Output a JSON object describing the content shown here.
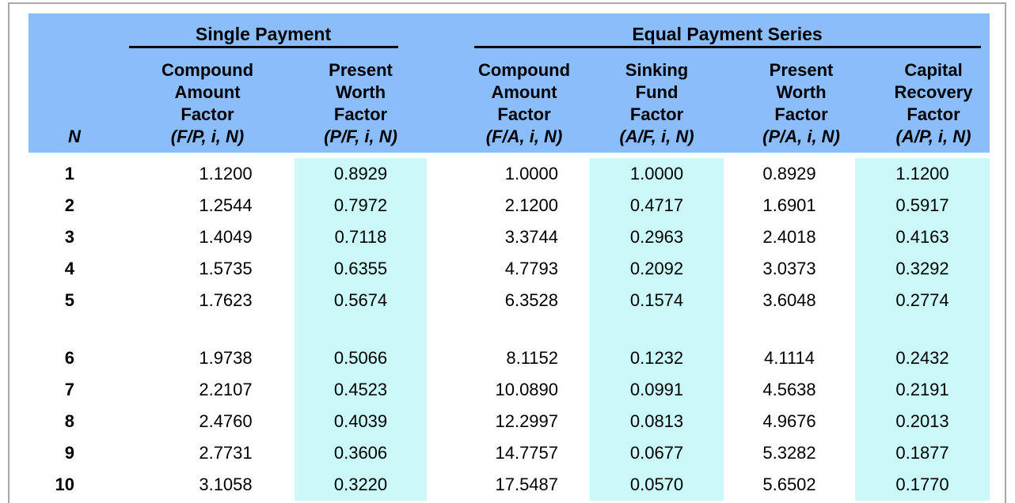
{
  "chart_data": {
    "type": "table",
    "col_groups": [
      {
        "label": "Single Payment",
        "span_columns": [
          "fp",
          "pf"
        ]
      },
      {
        "label": "Equal Payment Series",
        "span_columns": [
          "fa",
          "af",
          "pa",
          "ap"
        ]
      }
    ],
    "columns": [
      {
        "key": "n",
        "label": "",
        "sub": "N",
        "highlight": false
      },
      {
        "key": "fp",
        "label": "Compound\nAmount\nFactor",
        "sub": "(F/P, i, N)",
        "highlight": false
      },
      {
        "key": "pf",
        "label": "Present\nWorth\nFactor",
        "sub": "(P/F, i, N)",
        "highlight": true
      },
      {
        "key": "fa",
        "label": "Compound\nAmount\nFactor",
        "sub": "(F/A, i, N)",
        "highlight": false
      },
      {
        "key": "af",
        "label": "Sinking\nFund\nFactor",
        "sub": "(A/F, i, N)",
        "highlight": true
      },
      {
        "key": "pa",
        "label": "Present\nWorth\nFactor",
        "sub": "(P/A, i, N)",
        "highlight": false
      },
      {
        "key": "ap",
        "label": "Capital\nRecovery\nFactor",
        "sub": "(A/P, i, N)",
        "highlight": true
      }
    ],
    "rows": [
      {
        "values": {
          "n": "1",
          "fp": "1.1200",
          "pf": "0.8929",
          "fa": "1.0000",
          "af": "1.0000",
          "pa": "0.8929",
          "ap": "1.1200"
        }
      },
      {
        "values": {
          "n": "2",
          "fp": "1.2544",
          "pf": "0.7972",
          "fa": "2.1200",
          "af": "0.4717",
          "pa": "1.6901",
          "ap": "0.5917"
        }
      },
      {
        "values": {
          "n": "3",
          "fp": "1.4049",
          "pf": "0.7118",
          "fa": "3.3744",
          "af": "0.2963",
          "pa": "2.4018",
          "ap": "0.4163"
        }
      },
      {
        "values": {
          "n": "4",
          "fp": "1.5735",
          "pf": "0.6355",
          "fa": "4.7793",
          "af": "0.2092",
          "pa": "3.0373",
          "ap": "0.3292"
        }
      },
      {
        "values": {
          "n": "5",
          "fp": "1.7623",
          "pf": "0.5674",
          "fa": "6.3528",
          "af": "0.1574",
          "pa": "3.6048",
          "ap": "0.2774"
        }
      },
      {
        "spacer": true
      },
      {
        "values": {
          "n": "6",
          "fp": "1.9738",
          "pf": "0.5066",
          "fa": "8.1152",
          "af": "0.1232",
          "pa": "4.1114",
          "ap": "0.2432"
        }
      },
      {
        "values": {
          "n": "7",
          "fp": "2.2107",
          "pf": "0.4523",
          "fa": "10.0890",
          "af": "0.0991",
          "pa": "4.5638",
          "ap": "0.2191"
        }
      },
      {
        "values": {
          "n": "8",
          "fp": "2.4760",
          "pf": "0.4039",
          "fa": "12.2997",
          "af": "0.0813",
          "pa": "4.9676",
          "ap": "0.2013"
        }
      },
      {
        "values": {
          "n": "9",
          "fp": "2.7731",
          "pf": "0.3606",
          "fa": "14.7757",
          "af": "0.0677",
          "pa": "5.3282",
          "ap": "0.1877"
        }
      },
      {
        "values": {
          "n": "10",
          "fp": "3.1058",
          "pf": "0.3220",
          "fa": "17.5487",
          "af": "0.0570",
          "pa": "5.6502",
          "ap": "0.1770"
        }
      }
    ],
    "colors": {
      "header_bg": "#8bbdfb",
      "highlight_bg": "#cbf9f9",
      "frame_border": "#a8a8a8",
      "text": "#000000"
    },
    "layout": {
      "grid": false,
      "legend": "none"
    }
  }
}
